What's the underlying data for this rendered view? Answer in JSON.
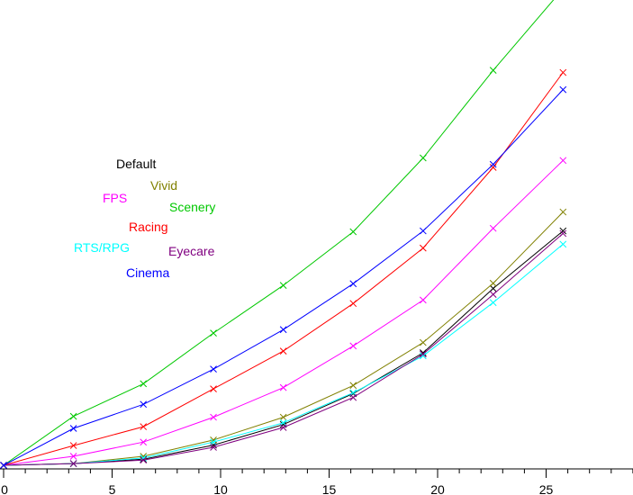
{
  "chart_data": {
    "type": "line",
    "title": "",
    "xlabel": "",
    "ylabel": "",
    "xlim": [
      0,
      29
    ],
    "ylim": [
      0,
      100
    ],
    "grid": false,
    "x_ticks": [
      "0",
      "5",
      "10",
      "15",
      "20",
      "25"
    ],
    "x": [
      0,
      3.22,
      6.44,
      9.67,
      12.89,
      16.11,
      19.33,
      22.56,
      25.78
    ],
    "series": [
      {
        "name": "Default",
        "color": "#000000",
        "values": [
          0,
          0.4,
          1.4,
          4.7,
          9.5,
          16.7,
          26.2,
          41.2,
          54.6
        ]
      },
      {
        "name": "Vivid",
        "color": "#808000",
        "values": [
          0,
          0.4,
          2.1,
          5.9,
          11.2,
          18.6,
          28.6,
          42.4,
          59.0
        ]
      },
      {
        "name": "FPS",
        "color": "#ff00ff",
        "values": [
          0,
          2.1,
          5.4,
          11.2,
          18.1,
          27.8,
          38.5,
          55.2,
          71.0
        ]
      },
      {
        "name": "Scenery",
        "color": "#00c800",
        "values": [
          0,
          11.4,
          19.0,
          30.8,
          41.9,
          54.4,
          71.6,
          92.0,
          111.0
        ]
      },
      {
        "name": "Racing",
        "color": "#ff0000",
        "values": [
          0,
          4.6,
          9.0,
          17.8,
          26.6,
          37.7,
          50.6,
          69.4,
          91.5
        ]
      },
      {
        "name": "RTS/RPG",
        "color": "#00ffff",
        "values": [
          0,
          0.4,
          1.7,
          5.4,
          9.9,
          16.9,
          25.5,
          37.9,
          51.5
        ]
      },
      {
        "name": "Eyecare",
        "color": "#800080",
        "values": [
          0,
          0.4,
          1.2,
          4.2,
          8.8,
          15.8,
          25.9,
          39.8,
          54.0
        ]
      },
      {
        "name": "Cinema",
        "color": "#0000ff",
        "values": [
          0,
          8.6,
          14.2,
          22.4,
          31.6,
          42.3,
          54.6,
          70.1,
          87.5
        ]
      }
    ]
  }
}
